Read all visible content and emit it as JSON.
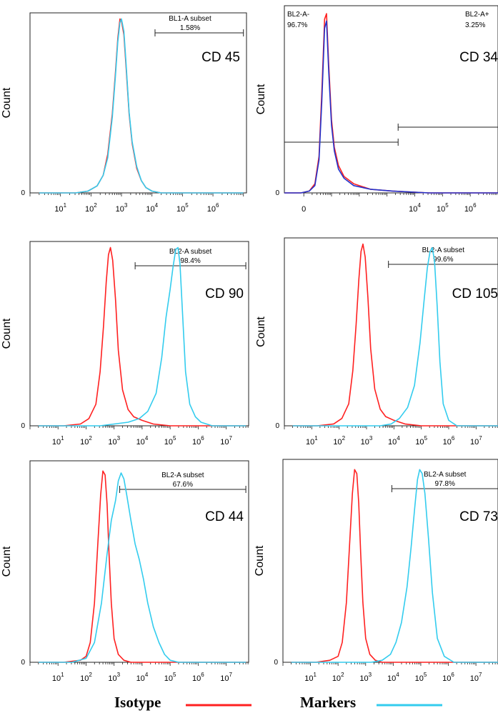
{
  "chart_data": [
    {
      "type": "line",
      "marker": "CD 45",
      "ylabel": "Count",
      "y_zero_label": "0",
      "x_scale": "log",
      "x_tick_labels": [
        "10^1",
        "10^2",
        "10^3",
        "10^4",
        "10^5",
        "10^6"
      ],
      "x_tick_values": [
        1,
        2,
        3,
        4,
        5,
        6
      ],
      "xlim": [
        0,
        7.1
      ],
      "ylim": [
        0,
        1
      ],
      "gates": [
        {
          "label": "BL1-A subset",
          "percent": "1.58%",
          "x_range": [
            4.1,
            7.0
          ]
        }
      ],
      "series": [
        {
          "name": "Isotype",
          "color": "#ff2020",
          "x": [
            0.3,
            1.0,
            1.5,
            1.9,
            2.2,
            2.4,
            2.55,
            2.7,
            2.8,
            2.88,
            2.95,
            3.0,
            3.08,
            3.15,
            3.25,
            3.35,
            3.5,
            3.65,
            3.8,
            4.0,
            4.3,
            7.0
          ],
          "y": [
            0,
            0,
            0,
            0.01,
            0.04,
            0.1,
            0.22,
            0.45,
            0.68,
            0.88,
            0.99,
            0.98,
            0.9,
            0.72,
            0.45,
            0.28,
            0.14,
            0.07,
            0.03,
            0.01,
            0,
            0
          ]
        },
        {
          "name": "Markers",
          "color": "#33ccee",
          "x": [
            0.3,
            1.0,
            1.5,
            1.9,
            2.2,
            2.4,
            2.55,
            2.7,
            2.8,
            2.88,
            2.95,
            3.0,
            3.08,
            3.15,
            3.25,
            3.35,
            3.5,
            3.65,
            3.8,
            4.0,
            4.3,
            7.0
          ],
          "y": [
            0,
            0,
            0,
            0.01,
            0.04,
            0.1,
            0.2,
            0.43,
            0.66,
            0.86,
            0.97,
            0.99,
            0.92,
            0.74,
            0.46,
            0.29,
            0.15,
            0.07,
            0.03,
            0.01,
            0,
            0
          ]
        }
      ]
    },
    {
      "type": "line",
      "marker": "CD 34",
      "ylabel": "Count",
      "y_zero_label": "0",
      "x_scale": "biexponential",
      "x_tick_labels": [
        "0",
        "10^4",
        "10^5",
        "10^6"
      ],
      "x_tick_values": [
        0,
        4,
        5,
        6
      ],
      "xlim": [
        -0.7,
        7.0
      ],
      "ylim": [
        0,
        1
      ],
      "gates": [
        {
          "label": "BL2-A-",
          "percent": "96.7%",
          "x_range": [
            -0.7,
            3.4
          ]
        },
        {
          "label": "BL2-A+",
          "percent": "3.25%",
          "x_range": [
            3.4,
            7.0
          ]
        }
      ],
      "series": [
        {
          "name": "Isotype",
          "color": "#ff2020",
          "x": [
            -0.7,
            -0.1,
            0.2,
            0.4,
            0.55,
            0.65,
            0.75,
            0.82,
            0.9,
            1.0,
            1.1,
            1.25,
            1.45,
            1.8,
            2.4,
            3.2,
            4.5,
            7.0
          ],
          "y": [
            0,
            0,
            0.01,
            0.05,
            0.2,
            0.55,
            0.95,
            0.98,
            0.7,
            0.4,
            0.25,
            0.15,
            0.09,
            0.05,
            0.02,
            0.01,
            0,
            0
          ]
        },
        {
          "name": "Markers",
          "color": "#2233cc",
          "x": [
            -0.7,
            -0.1,
            0.2,
            0.4,
            0.55,
            0.65,
            0.75,
            0.82,
            0.9,
            1.0,
            1.1,
            1.25,
            1.45,
            1.8,
            2.4,
            3.2,
            4.5,
            7.0
          ],
          "y": [
            0,
            0,
            0.01,
            0.04,
            0.18,
            0.5,
            0.9,
            0.94,
            0.66,
            0.37,
            0.23,
            0.13,
            0.08,
            0.04,
            0.02,
            0.01,
            0,
            0
          ]
        }
      ]
    },
    {
      "type": "line",
      "marker": "CD 90",
      "ylabel": "Count",
      "y_zero_label": "0",
      "x_scale": "log",
      "x_tick_labels": [
        "10^1",
        "10^2",
        "10^3",
        "10^4",
        "10^5",
        "10^6",
        "10^7"
      ],
      "x_tick_values": [
        1,
        2,
        3,
        4,
        5,
        6,
        7
      ],
      "xlim": [
        0,
        7.8
      ],
      "ylim": [
        0,
        1
      ],
      "gates": [
        {
          "label": "BL2-A subset",
          "percent": "98.4%",
          "x_range": [
            3.75,
            7.7
          ]
        }
      ],
      "series": [
        {
          "name": "Isotype",
          "color": "#ff2020",
          "x": [
            0.3,
            1.2,
            1.8,
            2.1,
            2.35,
            2.5,
            2.62,
            2.72,
            2.8,
            2.87,
            2.95,
            3.05,
            3.15,
            3.3,
            3.5,
            3.7,
            4.0,
            4.4,
            5.0,
            7.7
          ],
          "y": [
            0,
            0,
            0.01,
            0.04,
            0.12,
            0.3,
            0.55,
            0.8,
            0.95,
            0.99,
            0.92,
            0.7,
            0.42,
            0.2,
            0.09,
            0.05,
            0.03,
            0.01,
            0,
            0
          ]
        },
        {
          "name": "Markers",
          "color": "#33ccee",
          "x": [
            0.3,
            2.5,
            3.0,
            3.5,
            3.9,
            4.2,
            4.5,
            4.7,
            4.85,
            5.0,
            5.1,
            5.2,
            5.28,
            5.35,
            5.45,
            5.55,
            5.7,
            5.9,
            6.1,
            6.5,
            7.7
          ],
          "y": [
            0,
            0,
            0.01,
            0.02,
            0.04,
            0.08,
            0.18,
            0.38,
            0.6,
            0.76,
            0.88,
            0.98,
            0.99,
            0.9,
            0.6,
            0.3,
            0.12,
            0.05,
            0.02,
            0,
            0
          ]
        }
      ]
    },
    {
      "type": "line",
      "marker": "CD 105",
      "ylabel": "Count",
      "y_zero_label": "0",
      "x_scale": "log",
      "x_tick_labels": [
        "10^1",
        "10^2",
        "10^3",
        "10^4",
        "10^5",
        "10^6",
        "10^7"
      ],
      "x_tick_values": [
        1,
        2,
        3,
        4,
        5,
        6,
        7
      ],
      "xlim": [
        0,
        7.8
      ],
      "ylim": [
        0,
        1
      ],
      "gates": [
        {
          "label": "BL2-A subset",
          "percent": "99.6%",
          "x_range": [
            3.8,
            7.8
          ]
        }
      ],
      "series": [
        {
          "name": "Isotype",
          "color": "#ff2020",
          "x": [
            0.3,
            1.2,
            1.8,
            2.1,
            2.35,
            2.5,
            2.62,
            2.72,
            2.8,
            2.87,
            2.95,
            3.05,
            3.15,
            3.3,
            3.5,
            3.7,
            4.0,
            4.4,
            5.0,
            7.8
          ],
          "y": [
            0,
            0,
            0.01,
            0.04,
            0.12,
            0.3,
            0.55,
            0.8,
            0.95,
            0.99,
            0.92,
            0.7,
            0.42,
            0.2,
            0.09,
            0.05,
            0.03,
            0.01,
            0,
            0
          ]
        },
        {
          "name": "Markers",
          "color": "#33ccee",
          "x": [
            0.3,
            3.5,
            3.9,
            4.2,
            4.5,
            4.75,
            4.95,
            5.1,
            5.22,
            5.32,
            5.4,
            5.48,
            5.58,
            5.68,
            5.8,
            6.0,
            6.3,
            7.8
          ],
          "y": [
            0,
            0,
            0.01,
            0.04,
            0.1,
            0.22,
            0.45,
            0.68,
            0.86,
            0.95,
            0.97,
            0.9,
            0.65,
            0.35,
            0.12,
            0.03,
            0,
            0
          ]
        }
      ]
    },
    {
      "type": "line",
      "marker": "CD 44",
      "ylabel": "Count",
      "y_zero_label": "0",
      "x_scale": "log",
      "x_tick_labels": [
        "10^1",
        "10^2",
        "10^3",
        "10^4",
        "10^5",
        "10^6",
        "10^7"
      ],
      "x_tick_values": [
        1,
        2,
        3,
        4,
        5,
        6,
        7
      ],
      "xlim": [
        0,
        7.8
      ],
      "ylim": [
        0,
        1
      ],
      "gates": [
        {
          "label": "BL2-A subset",
          "percent": "67.6%",
          "x_range": [
            3.2,
            7.7
          ]
        }
      ],
      "series": [
        {
          "name": "Isotype",
          "color": "#ff2020",
          "x": [
            0.3,
            1.2,
            1.8,
            2.0,
            2.15,
            2.3,
            2.42,
            2.52,
            2.6,
            2.68,
            2.75,
            2.82,
            2.9,
            3.0,
            3.15,
            3.35,
            3.6,
            4.0,
            7.7
          ],
          "y": [
            0,
            0,
            0.01,
            0.03,
            0.1,
            0.3,
            0.6,
            0.85,
            0.97,
            0.95,
            0.8,
            0.55,
            0.3,
            0.12,
            0.04,
            0.01,
            0,
            0,
            0
          ]
        },
        {
          "name": "Markers",
          "color": "#33ccee",
          "x": [
            0.3,
            1.5,
            2.0,
            2.3,
            2.55,
            2.75,
            2.9,
            3.05,
            3.15,
            3.25,
            3.35,
            3.45,
            3.6,
            3.75,
            3.9,
            4.05,
            4.2,
            4.4,
            4.6,
            4.8,
            5.0,
            5.3,
            7.7
          ],
          "y": [
            0,
            0,
            0.02,
            0.1,
            0.3,
            0.55,
            0.72,
            0.82,
            0.92,
            0.96,
            0.93,
            0.85,
            0.72,
            0.6,
            0.52,
            0.42,
            0.3,
            0.18,
            0.1,
            0.04,
            0.01,
            0,
            0
          ]
        }
      ]
    },
    {
      "type": "line",
      "marker": "CD 73",
      "ylabel": "Count",
      "y_zero_label": "0",
      "x_scale": "log",
      "x_tick_labels": [
        "10^1",
        "10^2",
        "10^3",
        "10^4",
        "10^5",
        "10^6",
        "10^7"
      ],
      "x_tick_values": [
        1,
        2,
        3,
        4,
        5,
        6,
        7
      ],
      "xlim": [
        0,
        7.8
      ],
      "ylim": [
        0,
        1
      ],
      "gates": [
        {
          "label": "BL2-A subset",
          "percent": "97.8%",
          "x_range": [
            3.95,
            7.8
          ]
        }
      ],
      "series": [
        {
          "name": "Isotype",
          "color": "#ff2020",
          "x": [
            0.3,
            1.2,
            1.7,
            2.0,
            2.15,
            2.3,
            2.42,
            2.52,
            2.6,
            2.68,
            2.75,
            2.82,
            2.9,
            3.0,
            3.15,
            3.35,
            3.6,
            4.0,
            7.8
          ],
          "y": [
            0,
            0,
            0.01,
            0.03,
            0.1,
            0.3,
            0.6,
            0.85,
            0.97,
            0.95,
            0.8,
            0.55,
            0.3,
            0.12,
            0.04,
            0.01,
            0,
            0,
            0
          ]
        },
        {
          "name": "Markers",
          "color": "#33ccee",
          "x": [
            0.3,
            3.2,
            3.6,
            3.9,
            4.1,
            4.3,
            4.5,
            4.65,
            4.78,
            4.88,
            4.96,
            5.05,
            5.15,
            5.28,
            5.42,
            5.6,
            5.85,
            6.2,
            7.8
          ],
          "y": [
            0,
            0,
            0.01,
            0.04,
            0.1,
            0.2,
            0.38,
            0.58,
            0.78,
            0.92,
            0.97,
            0.95,
            0.85,
            0.62,
            0.35,
            0.12,
            0.03,
            0,
            0
          ]
        }
      ]
    }
  ],
  "legend": [
    {
      "label": "Isotype",
      "color": "#ff2020"
    },
    {
      "label": "Markers",
      "color": "#33ccee"
    }
  ]
}
